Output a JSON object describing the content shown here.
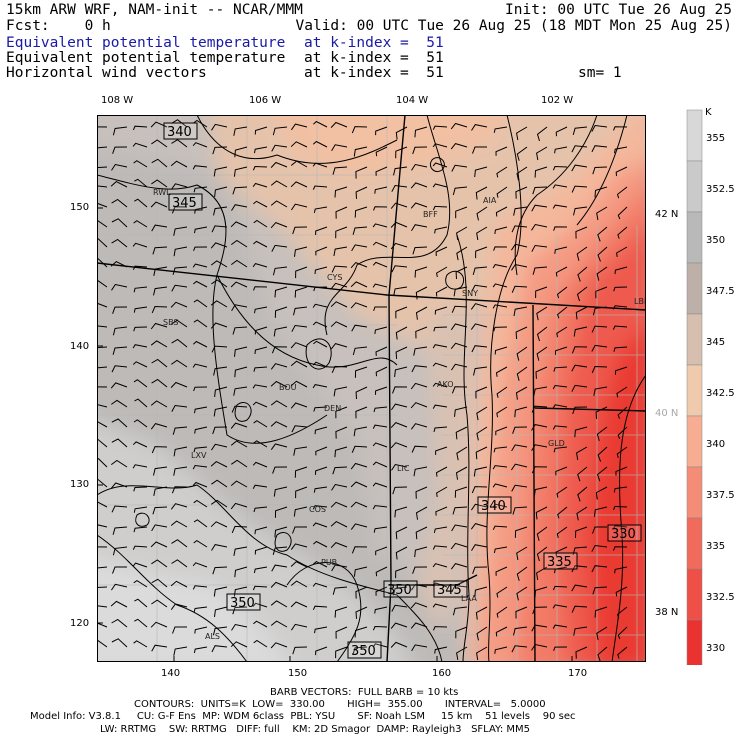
{
  "header": {
    "line1_left": "15km ARW WRF, NAM-init -- NCAR/MMM",
    "line1_right": "Init: 00 UTC Tue 26 Aug 25",
    "line2_left": "Fcst:    0 h",
    "line2_right": "Valid: 00 UTC Tue 26 Aug 25 (18 MDT Mon 25 Aug 25)",
    "fields": [
      {
        "name": "Equivalent potential temperature",
        "level": "at k-index =  51",
        "highlight": true
      },
      {
        "name": "Equivalent potential temperature",
        "level": "at k-index =  51",
        "highlight": false
      },
      {
        "name": "Horizontal wind vectors",
        "level": "at k-index =  51",
        "highlight": false
      }
    ],
    "smoothing": "sm= 1"
  },
  "top_lon_labels": [
    "108 W",
    "106 W",
    "104 W",
    "102 W"
  ],
  "right_lat_labels": [
    {
      "text": "42 N",
      "color": "#000000"
    },
    {
      "text": "40 N",
      "color": "#a8a8a8"
    },
    {
      "text": "38 N",
      "color": "#000000"
    }
  ],
  "chart_data": {
    "type": "heatmap",
    "title": "Equivalent potential temperature",
    "units": "K",
    "x_ticks": [
      140,
      150,
      160,
      170
    ],
    "y_ticks": [
      120,
      130,
      140,
      150
    ],
    "xlim": [
      135,
      175
    ],
    "ylim": [
      117,
      157
    ],
    "colorbar": {
      "label": "K",
      "levels": [
        "355",
        "352.5",
        "350",
        "347.5",
        "345",
        "342.5",
        "340",
        "337.5",
        "335",
        "332.5",
        "330"
      ],
      "colors": [
        "#d8d8d8",
        "#cacaca",
        "#b9b9b9",
        "#bdb0a8",
        "#d6bfae",
        "#efcaad",
        "#f6ad92",
        "#f48c78",
        "#f16b5d",
        "#ee4f47",
        "#ea3230"
      ]
    },
    "contour_labels": [
      "340",
      "345",
      "340",
      "335",
      "330",
      "350",
      "350",
      "345",
      "350"
    ],
    "stations": [
      "RWL",
      "BFF",
      "AIA",
      "CYS",
      "SNY",
      "SBS",
      "LBF",
      "BOU",
      "AKO",
      "DEN",
      "LXV",
      "LIC",
      "GLD",
      "COS",
      "PUB",
      "LAA",
      "ALS"
    ],
    "contours": {
      "units": "K",
      "low": "330.00",
      "high": "355.00",
      "interval": "5.0000"
    }
  },
  "footer": {
    "barbs": "BARB VECTORS:  FULL BARB = 10 kts",
    "contours_line": "CONTOURS:  UNITS=K  LOW=  330.00       HIGH=  355.00       INTERVAL=   5.0000",
    "model_line1": "Model Info: V3.8.1     CU: G-F Ens  MP: WDM 6class  PBL: YSU       SF: Noah LSM     15 km    51 levels    90 sec",
    "model_line2": "LW: RRTMG    SW: RRTMG   DIFF: full    KM: 2D Smagor  DAMP: Rayleigh3   SFLAY: MM5"
  }
}
